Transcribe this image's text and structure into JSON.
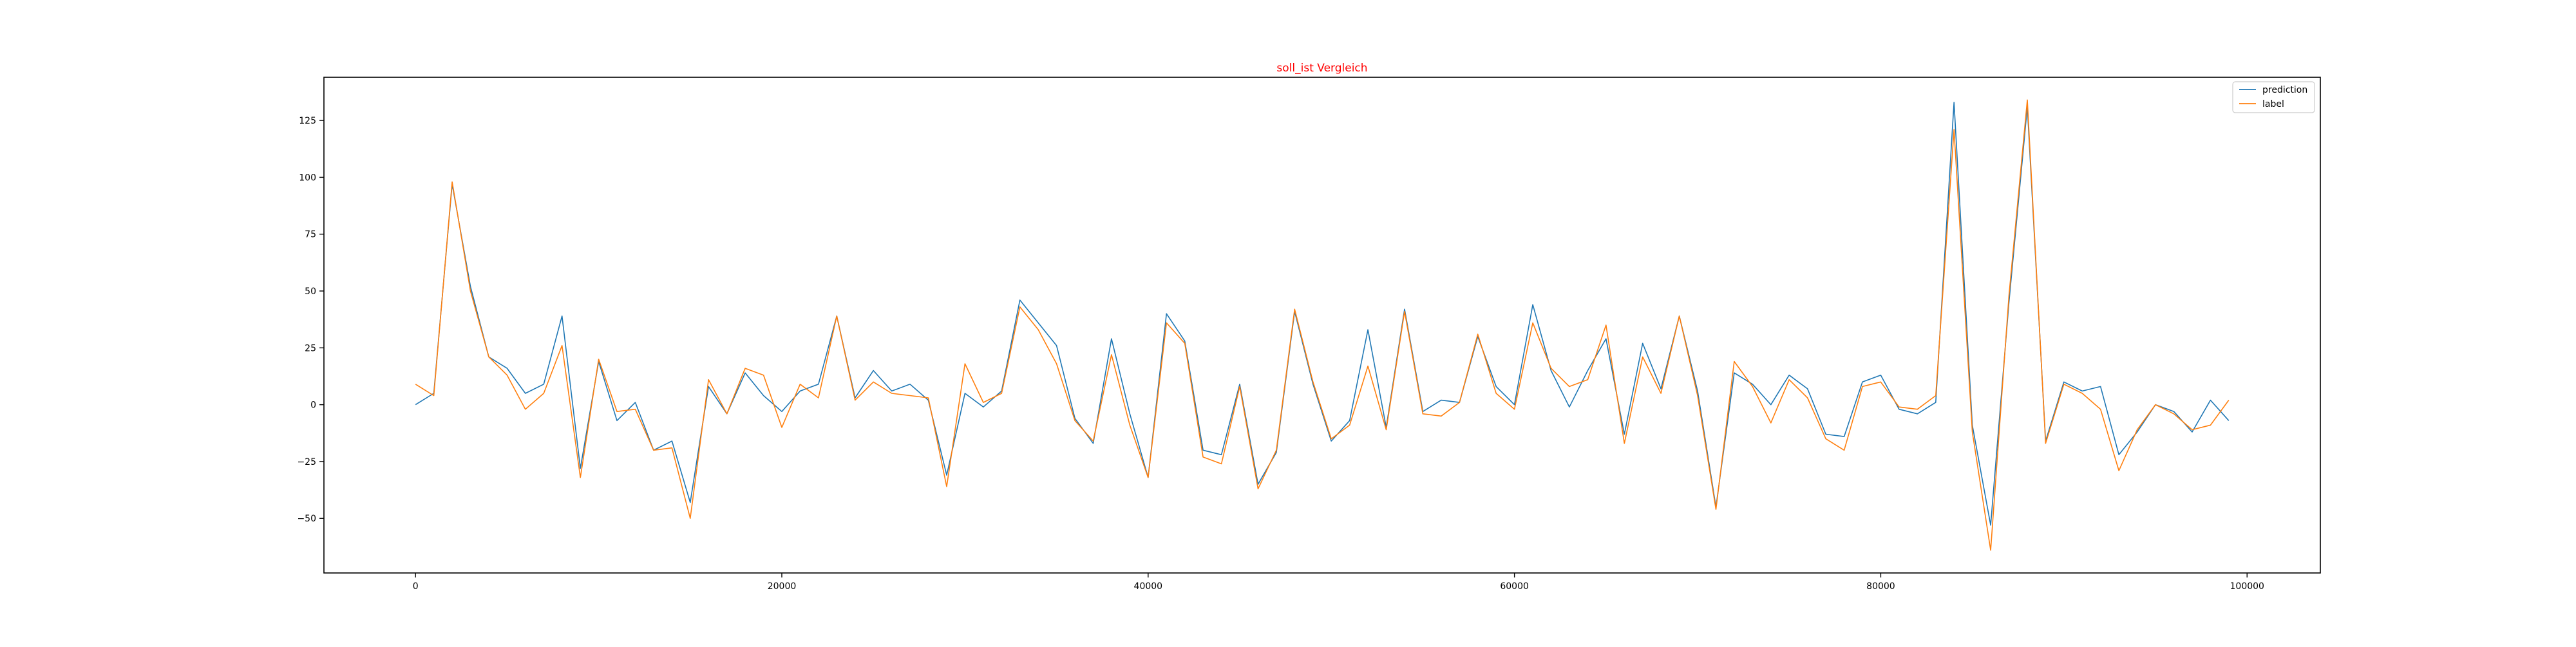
{
  "chart_data": {
    "type": "line",
    "title": "soll_ist Vergleich",
    "title_color": "#ff0000",
    "xlabel": "",
    "ylabel": "",
    "xlim": [
      -5000,
      104000
    ],
    "ylim": [
      -74,
      144
    ],
    "x_ticks": [
      0,
      20000,
      40000,
      60000,
      80000,
      100000
    ],
    "y_ticks": [
      -50,
      -25,
      0,
      25,
      50,
      75,
      100,
      125
    ],
    "grid": false,
    "legend_position": "top-right",
    "x": [
      0,
      1000,
      2000,
      3000,
      4000,
      5000,
      6000,
      7000,
      8000,
      9000,
      10000,
      11000,
      12000,
      13000,
      14000,
      15000,
      16000,
      17000,
      18000,
      19000,
      20000,
      21000,
      22000,
      23000,
      24000,
      25000,
      26000,
      27000,
      28000,
      29000,
      30000,
      31000,
      32000,
      33000,
      34000,
      35000,
      36000,
      37000,
      38000,
      39000,
      40000,
      41000,
      42000,
      43000,
      44000,
      45000,
      46000,
      47000,
      48000,
      49000,
      50000,
      51000,
      52000,
      53000,
      54000,
      55000,
      56000,
      57000,
      58000,
      59000,
      60000,
      61000,
      62000,
      63000,
      64000,
      65000,
      66000,
      67000,
      68000,
      69000,
      70000,
      71000,
      72000,
      73000,
      74000,
      75000,
      76000,
      77000,
      78000,
      79000,
      80000,
      81000,
      82000,
      83000,
      84000,
      85000,
      86000,
      87000,
      88000,
      89000,
      90000,
      91000,
      92000,
      93000,
      94000,
      95000,
      96000,
      97000,
      98000,
      99000
    ],
    "series": [
      {
        "name": "prediction",
        "color": "#1f77b4",
        "values": [
          0,
          5,
          97,
          52,
          21,
          16,
          5,
          9,
          39,
          -28,
          19,
          -7,
          1,
          -20,
          -16,
          -43,
          8,
          -4,
          14,
          4,
          -3,
          6,
          9,
          39,
          3,
          15,
          6,
          9,
          2,
          -31,
          5,
          -1,
          6,
          46,
          36,
          26,
          -6,
          -17,
          29,
          -4,
          -32,
          40,
          28,
          -20,
          -22,
          9,
          -35,
          -21,
          41,
          9,
          -16,
          -7,
          33,
          -10,
          42,
          -3,
          2,
          1,
          30,
          8,
          0,
          44,
          15,
          -1,
          15,
          29,
          -13,
          27,
          7,
          39,
          6,
          -45,
          14,
          9,
          0,
          13,
          7,
          -13,
          -14,
          10,
          13,
          -2,
          -4,
          1,
          133,
          -9,
          -53,
          45,
          131,
          -16,
          10,
          6,
          8,
          -22,
          -12,
          0,
          -3,
          -12,
          2,
          -7
        ]
      },
      {
        "name": "label",
        "color": "#ff7f0e",
        "values": [
          9,
          4,
          98,
          50,
          21,
          13,
          -2,
          5,
          26,
          -32,
          20,
          -3,
          -2,
          -20,
          -19,
          -50,
          11,
          -4,
          16,
          13,
          -10,
          9,
          3,
          39,
          2,
          10,
          5,
          4,
          3,
          -36,
          18,
          1,
          5,
          43,
          33,
          18,
          -7,
          -16,
          22,
          -9,
          -32,
          36,
          27,
          -23,
          -26,
          8,
          -37,
          -20,
          42,
          10,
          -15,
          -9,
          17,
          -11,
          41,
          -4,
          -5,
          1,
          31,
          5,
          -2,
          36,
          16,
          8,
          11,
          35,
          -17,
          21,
          5,
          39,
          4,
          -46,
          19,
          8,
          -8,
          11,
          3,
          -15,
          -20,
          8,
          10,
          -1,
          -2,
          4,
          121,
          -12,
          -64,
          48,
          134,
          -17,
          9,
          5,
          -2,
          -29,
          -11,
          0,
          -4,
          -11,
          -9,
          2
        ]
      }
    ]
  }
}
